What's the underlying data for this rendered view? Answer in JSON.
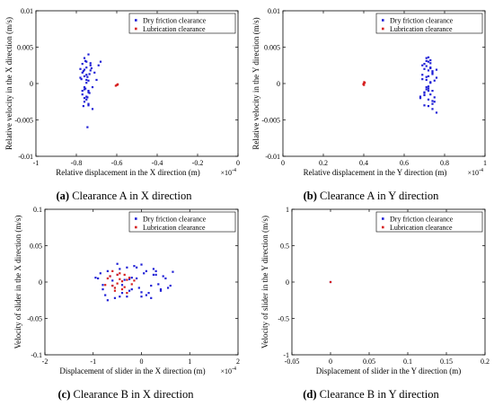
{
  "chart_data": [
    {
      "type": "scatter",
      "caption": {
        "label": "(a)",
        "text": " Clearance A in X direction"
      },
      "xlabel": "Relative displacement in the X direction (m)",
      "x_exponent": "×10",
      "x_exponent_power": "-4",
      "ylabel": "Relative velocity in the X direction (m/s)",
      "xlim": [
        -1,
        0
      ],
      "ylim": [
        -0.01,
        0.01
      ],
      "xticks": [
        "-1",
        "-0.8",
        "-0.6",
        "-0.4",
        "-0.2",
        "0"
      ],
      "xtick_values": [
        -1,
        -0.8,
        -0.6,
        -0.4,
        -0.2,
        0
      ],
      "yticks": [
        "-0.01",
        "-0.005",
        "0",
        "0.005",
        "0.01"
      ],
      "ytick_values": [
        -0.01,
        -0.005,
        0,
        0.005,
        0.01
      ],
      "legend": {
        "placement": "top-right"
      },
      "series": [
        {
          "name": "Dry friction clearance",
          "color": "#1f1fd6",
          "x": [
            -0.78,
            -0.76,
            -0.74,
            -0.75,
            -0.77,
            -0.73,
            -0.76,
            -0.75,
            -0.74,
            -0.77,
            -0.76,
            -0.75,
            -0.73,
            -0.76,
            -0.78,
            -0.74,
            -0.75,
            -0.76,
            -0.72,
            -0.77,
            -0.75,
            -0.74,
            -0.76,
            -0.73,
            -0.75,
            -0.77,
            -0.74,
            -0.76,
            -0.75,
            -0.74,
            -0.68,
            -0.71,
            -0.69,
            -0.72,
            -0.7,
            -0.745,
            -0.755,
            -0.765,
            -0.735,
            -0.725,
            -0.745,
            -0.755,
            -0.765,
            -0.775,
            -0.735,
            -0.745
          ],
          "y": [
            0.002,
            0.001,
            -0.001,
            0.0005,
            -0.0015,
            0.0025,
            -0.0025,
            0.003,
            -0.003,
            0.0015,
            -0.0005,
            0.0001,
            0.0018,
            -0.002,
            0.0008,
            -0.0012,
            0.0022,
            0.0035,
            -0.0035,
            -0.001,
            0.0012,
            0.0004,
            -0.0008,
            0.0028,
            -0.0022,
            0.0027,
            -0.0028,
            0.0019,
            -0.0018,
            0.004,
            0.003,
            0.0015,
            0.0025,
            -0.0005,
            0.0005,
            0.0009,
            -0.0007,
            0.0017,
            -0.0013,
            0.0021,
            -0.0019,
            0.0031,
            -0.0031,
            0.0006,
            0.0013,
            -0.006
          ]
        },
        {
          "name": "Lubrication clearance",
          "color": "#d61f1f",
          "x": [
            -0.6,
            -0.595,
            -0.605,
            -0.598
          ],
          "y": [
            -0.0002,
            -0.0001,
            -0.0003,
            -0.0002
          ]
        }
      ]
    },
    {
      "type": "scatter",
      "caption": {
        "label": "(b)",
        "text": " Clearance A in Y direction"
      },
      "xlabel": "Relative displacement in the Y direction (m)",
      "x_exponent": "×10",
      "x_exponent_power": "-4",
      "ylabel": "Relative velocity in the Y direction (m/s)",
      "xlim": [
        0,
        1
      ],
      "ylim": [
        -0.01,
        0.01
      ],
      "xticks": [
        "0",
        "0.2",
        "0.4",
        "0.6",
        "0.8",
        "1"
      ],
      "xtick_values": [
        0,
        0.2,
        0.4,
        0.6,
        0.8,
        1
      ],
      "yticks": [
        "-0.01",
        "-0.005",
        "0",
        "0.005",
        "0.01"
      ],
      "ytick_values": [
        -0.01,
        -0.005,
        0,
        0.005,
        0.01
      ],
      "legend": {
        "placement": "top-right"
      },
      "series": [
        {
          "name": "Dry friction clearance",
          "color": "#1f1fd6",
          "x": [
            0.7,
            0.72,
            0.74,
            0.71,
            0.73,
            0.69,
            0.75,
            0.72,
            0.7,
            0.74,
            0.71,
            0.73,
            0.72,
            0.68,
            0.76,
            0.7,
            0.73,
            0.71,
            0.74,
            0.72,
            0.69,
            0.75,
            0.71,
            0.73,
            0.72,
            0.7,
            0.74,
            0.76,
            0.68,
            0.73,
            0.71,
            0.72,
            0.74,
            0.7,
            0.73,
            0.75,
            0.71,
            0.72,
            0.69,
            0.74,
            0.72,
            0.73,
            0.7,
            0.71,
            0.74,
            0.72,
            0.76
          ],
          "y": [
            0.002,
            0.001,
            -0.001,
            0.0005,
            -0.0015,
            0.0025,
            -0.0025,
            0.003,
            -0.003,
            0.0015,
            -0.0005,
            0.0001,
            0.0018,
            -0.002,
            0.0008,
            -0.0012,
            0.0022,
            0.0035,
            -0.0035,
            -0.001,
            0.0012,
            0.0004,
            -0.0008,
            0.0028,
            -0.0022,
            0.0027,
            -0.0028,
            0.0019,
            -0.0018,
            0.0032,
            0.0009,
            -0.0007,
            0.0017,
            -0.0013,
            0.0021,
            -0.0019,
            0.0031,
            -0.0031,
            0.0006,
            0.0013,
            -0.0004,
            0.0002,
            -0.0016,
            0.0024,
            -0.0024,
            0.0036,
            -0.004
          ]
        },
        {
          "name": "Lubrication clearance",
          "color": "#d61f1f",
          "x": [
            0.4,
            0.405,
            0.398,
            0.402,
            0.401
          ],
          "y": [
            0,
            0.0001,
            -0.0001,
            0.0002,
            -0.0002
          ]
        }
      ]
    },
    {
      "type": "scatter",
      "caption": {
        "label": "(c)",
        "text": " Clearance B in X direction"
      },
      "xlabel": "Displacement of slider in the X direction (m)",
      "x_exponent": "×10",
      "x_exponent_power": "-4",
      "ylabel": "Velocity of slider in the X direction (m/s)",
      "xlim": [
        -2,
        2
      ],
      "ylim": [
        -0.1,
        0.1
      ],
      "xticks": [
        "-2",
        "-1",
        "0",
        "1",
        "2"
      ],
      "xtick_values": [
        -2,
        -1,
        0,
        1,
        2
      ],
      "yticks": [
        "-0.1",
        "-0.05",
        "0",
        "0.05",
        "0.1"
      ],
      "ytick_values": [
        -0.1,
        -0.05,
        0,
        0.05,
        0.1
      ],
      "legend": {
        "placement": "top-right"
      },
      "series": [
        {
          "name": "Dry friction clearance",
          "color": "#1f1fd6",
          "x": [
            -0.9,
            -0.8,
            -0.7,
            -0.6,
            -0.5,
            -0.4,
            -0.3,
            -0.2,
            -0.1,
            0,
            0.1,
            0.2,
            0.3,
            0.4,
            0.5,
            0.6,
            -0.85,
            -0.75,
            -0.65,
            -0.55,
            -0.45,
            -0.35,
            -0.25,
            -0.15,
            -0.05,
            0.05,
            0.15,
            0.25,
            0.35,
            0.45,
            -0.7,
            -0.5,
            -0.3,
            -0.1,
            0.1,
            0.3,
            -0.6,
            -0.4,
            -0.2,
            0,
            0.2,
            0.4,
            -0.8,
            0.65,
            -0.95,
            0.55,
            -0.25,
            0.0,
            -0.45,
            0.25
          ],
          "y": [
            0.005,
            -0.01,
            0.015,
            -0.005,
            0.01,
            -0.015,
            0.02,
            -0.01,
            0.005,
            -0.02,
            0.015,
            -0.005,
            0.01,
            -0.01,
            0.005,
            -0.005,
            0.012,
            -0.018,
            0.008,
            -0.022,
            0.018,
            0.003,
            -0.012,
            0.022,
            -0.008,
            0.012,
            -0.015,
            0.018,
            -0.003,
            0.008,
            -0.025,
            0.025,
            -0.02,
            0.02,
            -0.018,
            0.015,
            0.002,
            -0.004,
            0.006,
            0.024,
            -0.022,
            -0.012,
            -0.004,
            0.014,
            0.006,
            -0.008,
            0.004,
            -0.014,
            -0.02,
            0.01
          ]
        },
        {
          "name": "Lubrication clearance",
          "color": "#d61f1f",
          "x": [
            -0.7,
            -0.6,
            -0.5,
            -0.4,
            -0.3,
            -0.2,
            -0.65,
            -0.55,
            -0.45,
            -0.35,
            -0.25,
            -0.5,
            -0.4,
            -0.6,
            -0.3,
            -0.75,
            -0.15,
            -0.45,
            -0.55,
            -0.35
          ],
          "y": [
            0.005,
            -0.005,
            0.01,
            -0.01,
            0.003,
            -0.003,
            0.008,
            -0.012,
            0.012,
            -0.007,
            0.006,
            -0.002,
            0.001,
            0.015,
            -0.015,
            -0.004,
            0.002,
            0.004,
            -0.008,
            0.01
          ]
        }
      ]
    },
    {
      "type": "scatter",
      "caption": {
        "label": "(d)",
        "text": " Clearance B in Y direction"
      },
      "xlabel": "Displacement of slider in the Y direction (m)",
      "ylabel": "Velocity of slider in the Y direction (m/s)",
      "xlim": [
        -0.05,
        0.2
      ],
      "ylim": [
        -1,
        1
      ],
      "xticks": [
        "-0.05",
        "0",
        "0.05",
        "0.1",
        "0.15",
        "0.2"
      ],
      "xtick_values": [
        -0.05,
        0,
        0.05,
        0.1,
        0.15,
        0.2
      ],
      "yticks": [
        "-1",
        "-0.5",
        "0",
        "0.5",
        "1"
      ],
      "ytick_values": [
        -1,
        -0.5,
        0,
        0.5,
        1
      ],
      "legend": {
        "placement": "top-right"
      },
      "series": [
        {
          "name": "Dry friction clearance",
          "color": "#1f1fd6",
          "x": [
            0
          ],
          "y": [
            0
          ]
        },
        {
          "name": "Lubrication clearance",
          "color": "#d61f1f",
          "x": [
            0
          ],
          "y": [
            0
          ]
        }
      ]
    }
  ]
}
